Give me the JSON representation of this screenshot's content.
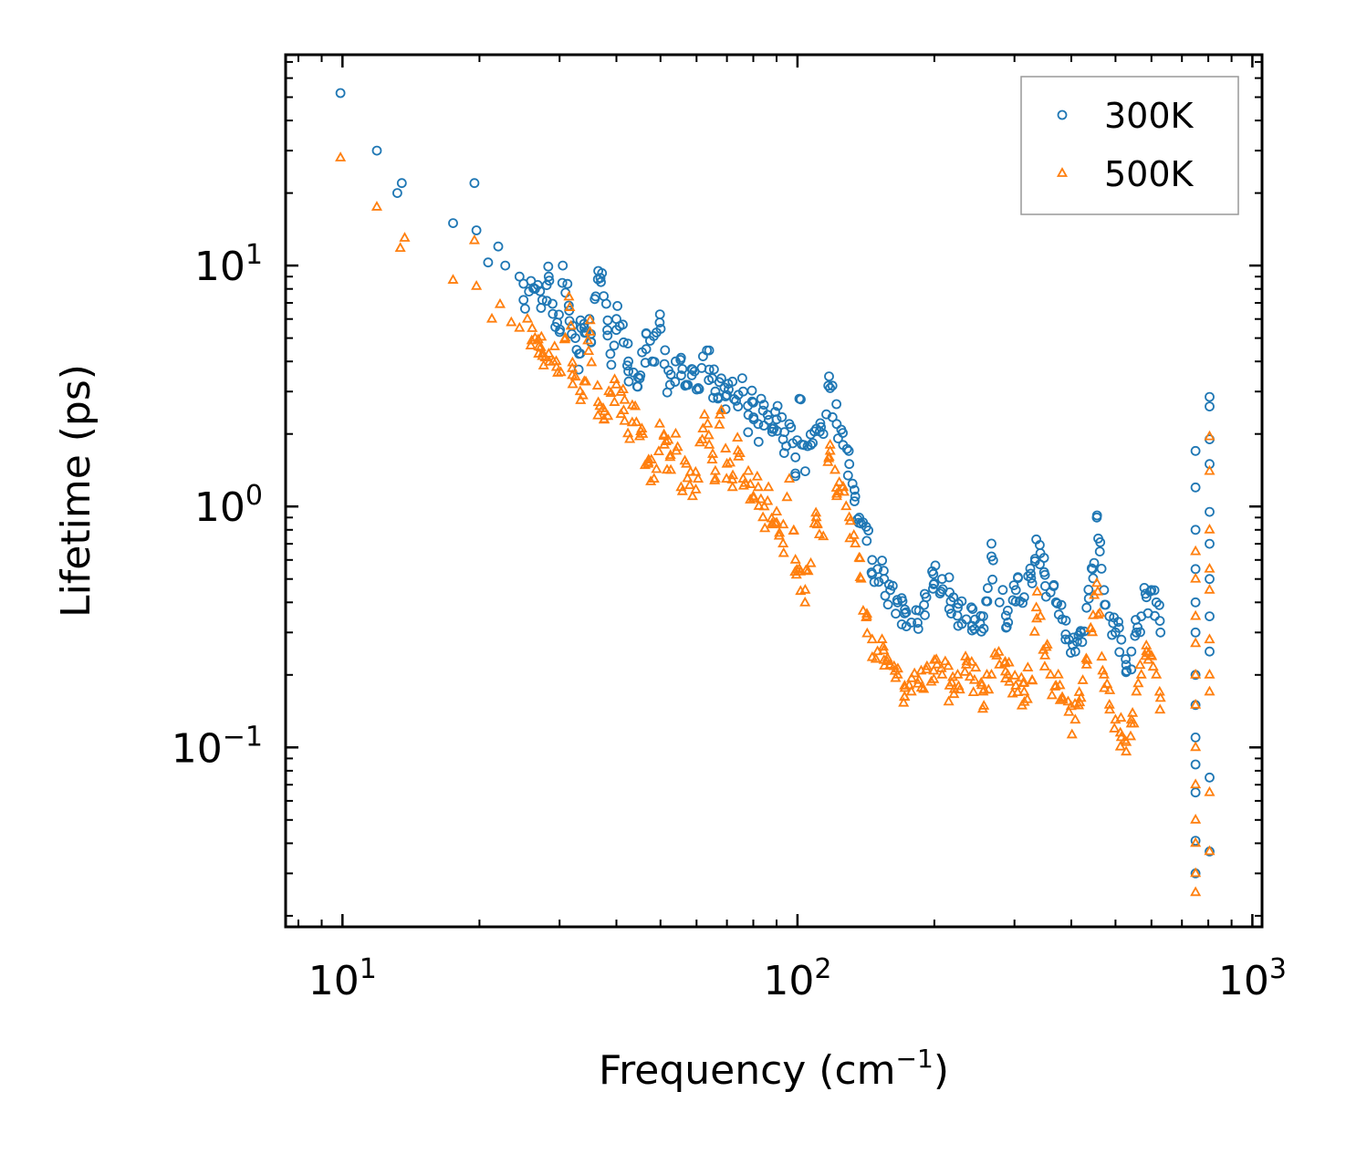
{
  "chart_data": {
    "type": "scatter",
    "xscale": "log",
    "yscale": "log",
    "xlabel": "Frequency (cm",
    "xlabel_sup": "−1",
    "xlabel_end": ")",
    "ylabel": "Lifetime (ps)",
    "xlim": [
      7.5,
      1050
    ],
    "ylim": [
      0.018,
      75
    ],
    "legend_position": "top-right",
    "x_ticks": [
      {
        "value": 10,
        "base": "10",
        "exp": "1"
      },
      {
        "value": 100,
        "base": "10",
        "exp": "2"
      },
      {
        "value": 1000,
        "base": "10",
        "exp": "3"
      }
    ],
    "y_ticks": [
      {
        "value": 0.1,
        "base": "10",
        "exp": "−1"
      },
      {
        "value": 1,
        "base": "10",
        "exp": "0"
      },
      {
        "value": 10,
        "base": "10",
        "exp": "1"
      }
    ],
    "series": [
      {
        "name": "300K",
        "marker": "circle",
        "color": "#1f77b4",
        "points": [
          [
            9.9,
            52
          ],
          [
            11.9,
            30
          ],
          [
            13.2,
            20
          ],
          [
            13.5,
            22
          ],
          [
            17.5,
            15
          ],
          [
            19.5,
            22
          ],
          [
            19.7,
            14
          ],
          [
            20.9,
            10.3
          ],
          [
            22,
            12
          ],
          [
            22.8,
            10
          ],
          [
            24.5,
            9
          ],
          [
            25,
            7.2
          ],
          [
            25.7,
            7.8
          ],
          [
            26.5,
            8
          ],
          [
            27.5,
            7.2
          ],
          [
            28.4,
            9
          ],
          [
            29,
            6.3
          ],
          [
            30,
            5.3
          ],
          [
            30.5,
            10
          ],
          [
            31.5,
            6.5
          ],
          [
            32.5,
            5
          ],
          [
            33.1,
            4.3
          ],
          [
            33.5,
            5.5
          ],
          [
            34.9,
            6
          ],
          [
            35.2,
            4.8
          ],
          [
            36.5,
            9.5
          ],
          [
            37.2,
            9.3
          ],
          [
            38.2,
            5.4
          ],
          [
            38.8,
            4.3
          ],
          [
            40,
            6
          ],
          [
            41.5,
            4.8
          ],
          [
            42.5,
            4
          ],
          [
            43.6,
            3.6
          ],
          [
            45,
            3.4
          ],
          [
            46.5,
            4.5
          ],
          [
            48,
            4
          ],
          [
            49.8,
            5.8
          ],
          [
            51,
            3.9
          ],
          [
            52.5,
            3.2
          ],
          [
            54,
            4
          ],
          [
            55.5,
            3.5
          ],
          [
            57,
            3.2
          ],
          [
            58.8,
            3.7
          ],
          [
            60.5,
            3.1
          ],
          [
            62,
            4.2
          ],
          [
            64,
            3.7
          ],
          [
            66,
            3
          ],
          [
            68,
            3.4
          ],
          [
            70,
            2.9
          ],
          [
            72,
            3.3
          ],
          [
            74,
            2.6
          ],
          [
            76,
            3
          ],
          [
            78,
            2.4
          ],
          [
            80,
            2.7
          ],
          [
            82,
            2.2
          ],
          [
            84,
            2.5
          ],
          [
            86,
            2.4
          ],
          [
            88,
            2.1
          ],
          [
            90,
            2.3
          ],
          [
            93,
            1.9
          ],
          [
            96,
            2.2
          ],
          [
            99,
            1.6
          ],
          [
            101,
            2.8
          ],
          [
            104,
            1.4
          ],
          [
            107,
            1.8
          ],
          [
            110,
            2.1
          ],
          [
            114,
            2
          ],
          [
            118,
            3.1
          ],
          [
            122,
            2.2
          ],
          [
            126,
            1.8
          ],
          [
            130,
            1.5
          ],
          [
            134,
            1.1
          ],
          [
            138,
            0.85
          ],
          [
            142,
            0.72
          ],
          [
            146,
            0.6
          ],
          [
            150,
            0.55
          ],
          [
            155,
            0.5
          ],
          [
            160,
            0.45
          ],
          [
            166,
            0.4
          ],
          [
            172,
            0.36
          ],
          [
            178,
            0.33
          ],
          [
            185,
            0.37
          ],
          [
            192,
            0.42
          ],
          [
            200,
            0.48
          ],
          [
            208,
            0.5
          ],
          [
            216,
            0.44
          ],
          [
            225,
            0.38
          ],
          [
            235,
            0.34
          ],
          [
            245,
            0.31
          ],
          [
            256,
            0.35
          ],
          [
            267,
            0.62
          ],
          [
            278,
            0.4
          ],
          [
            290,
            0.37
          ],
          [
            302,
            0.45
          ],
          [
            315,
            0.42
          ],
          [
            328,
            0.48
          ],
          [
            335,
            0.73
          ],
          [
            342,
            0.64
          ],
          [
            350,
            0.52
          ],
          [
            360,
            0.44
          ],
          [
            370,
            0.4
          ],
          [
            382,
            0.34
          ],
          [
            395,
            0.28
          ],
          [
            408,
            0.25
          ],
          [
            420,
            0.3
          ],
          [
            432,
            0.38
          ],
          [
            445,
            0.55
          ],
          [
            455,
            0.9
          ],
          [
            462,
            0.65
          ],
          [
            472,
            0.45
          ],
          [
            485,
            0.35
          ],
          [
            500,
            0.3
          ],
          [
            515,
            0.28
          ],
          [
            528,
            0.22
          ],
          [
            542,
            0.25
          ],
          [
            556,
            0.3
          ],
          [
            570,
            0.35
          ],
          [
            585,
            0.42
          ],
          [
            600,
            0.45
          ],
          [
            615,
            0.4
          ],
          [
            628,
            0.3
          ],
          [
            750,
            1.7
          ],
          [
            750,
            1.2
          ],
          [
            750,
            0.8
          ],
          [
            750,
            0.55
          ],
          [
            750,
            0.4
          ],
          [
            750,
            0.3
          ],
          [
            750,
            0.2
          ],
          [
            750,
            0.15
          ],
          [
            750,
            0.11
          ],
          [
            750,
            0.085
          ],
          [
            750,
            0.065
          ],
          [
            750,
            0.041
          ],
          [
            750,
            0.03
          ],
          [
            805,
            2.85
          ],
          [
            805,
            2.6
          ],
          [
            805,
            1.9
          ],
          [
            805,
            1.5
          ],
          [
            805,
            0.95
          ],
          [
            805,
            0.7
          ],
          [
            805,
            0.5
          ],
          [
            805,
            0.35
          ],
          [
            805,
            0.25
          ],
          [
            805,
            0.075
          ],
          [
            805,
            0.037
          ]
        ]
      },
      {
        "name": "500K",
        "marker": "triangle",
        "color": "#ff7f0e",
        "points": [
          [
            9.9,
            28
          ],
          [
            11.9,
            17.5
          ],
          [
            13.4,
            11.8
          ],
          [
            13.7,
            13
          ],
          [
            17.5,
            8.7
          ],
          [
            19.5,
            12.7
          ],
          [
            19.7,
            8.2
          ],
          [
            21.3,
            6
          ],
          [
            22.2,
            6.9
          ],
          [
            23.5,
            5.8
          ],
          [
            24.5,
            5.5
          ],
          [
            25.5,
            6
          ],
          [
            26.5,
            5
          ],
          [
            27,
            4.6
          ],
          [
            27.5,
            4.2
          ],
          [
            28.4,
            4.3
          ],
          [
            29.5,
            4
          ],
          [
            30.2,
            3.6
          ],
          [
            31.6,
            6.7
          ],
          [
            32,
            3.5
          ],
          [
            33.3,
            3
          ],
          [
            34,
            3.3
          ],
          [
            35,
            5.3
          ],
          [
            36.5,
            2.7
          ],
          [
            37.6,
            2.3
          ],
          [
            38.5,
            3
          ],
          [
            40,
            3.2
          ],
          [
            41.5,
            2.5
          ],
          [
            42.8,
            1.9
          ],
          [
            44,
            2.6
          ],
          [
            45.5,
            2.1
          ],
          [
            47,
            1.5
          ],
          [
            48.4,
            1.3
          ],
          [
            49.8,
            2.2
          ],
          [
            51,
            1.8
          ],
          [
            52.5,
            1.6
          ],
          [
            54,
            2
          ],
          [
            55.5,
            1.2
          ],
          [
            57,
            1.5
          ],
          [
            58.8,
            1.1
          ],
          [
            60.5,
            1.3
          ],
          [
            62,
            2.1
          ],
          [
            64,
            1.8
          ],
          [
            66,
            1.4
          ],
          [
            68,
            2.5
          ],
          [
            70,
            1.5
          ],
          [
            72,
            1.2
          ],
          [
            74,
            1.7
          ],
          [
            76,
            1.3
          ],
          [
            78,
            1.4
          ],
          [
            80,
            1.1
          ],
          [
            82,
            1.2
          ],
          [
            84,
            0.9
          ],
          [
            86,
            1.05
          ],
          [
            88,
            0.85
          ],
          [
            90,
            0.95
          ],
          [
            93,
            0.7
          ],
          [
            96,
            1.3
          ],
          [
            99,
            0.6
          ],
          [
            101,
            0.55
          ],
          [
            104,
            0.45
          ],
          [
            107,
            0.58
          ],
          [
            110,
            0.9
          ],
          [
            114,
            0.75
          ],
          [
            118,
            1.8
          ],
          [
            122,
            1.1
          ],
          [
            126,
            1.2
          ],
          [
            130,
            0.9
          ],
          [
            134,
            0.7
          ],
          [
            138,
            0.5
          ],
          [
            142,
            0.35
          ],
          [
            146,
            0.28
          ],
          [
            150,
            0.25
          ],
          [
            155,
            0.23
          ],
          [
            160,
            0.22
          ],
          [
            166,
            0.2
          ],
          [
            172,
            0.18
          ],
          [
            178,
            0.17
          ],
          [
            185,
            0.19
          ],
          [
            192,
            0.21
          ],
          [
            200,
            0.23
          ],
          [
            208,
            0.2
          ],
          [
            216,
            0.18
          ],
          [
            225,
            0.2
          ],
          [
            235,
            0.22
          ],
          [
            245,
            0.19
          ],
          [
            256,
            0.17
          ],
          [
            267,
            0.2
          ],
          [
            278,
            0.22
          ],
          [
            290,
            0.2
          ],
          [
            302,
            0.18
          ],
          [
            315,
            0.17
          ],
          [
            328,
            0.19
          ],
          [
            335,
            0.38
          ],
          [
            342,
            0.35
          ],
          [
            350,
            0.24
          ],
          [
            360,
            0.2
          ],
          [
            370,
            0.18
          ],
          [
            382,
            0.16
          ],
          [
            395,
            0.14
          ],
          [
            408,
            0.13
          ],
          [
            420,
            0.16
          ],
          [
            432,
            0.22
          ],
          [
            445,
            0.3
          ],
          [
            455,
            0.48
          ],
          [
            462,
            0.36
          ],
          [
            472,
            0.2
          ],
          [
            485,
            0.15
          ],
          [
            500,
            0.13
          ],
          [
            515,
            0.11
          ],
          [
            528,
            0.105
          ],
          [
            542,
            0.13
          ],
          [
            556,
            0.17
          ],
          [
            570,
            0.2
          ],
          [
            585,
            0.25
          ],
          [
            600,
            0.24
          ],
          [
            615,
            0.2
          ],
          [
            628,
            0.16
          ],
          [
            750,
            0.65
          ],
          [
            750,
            0.5
          ],
          [
            750,
            0.35
          ],
          [
            750,
            0.27
          ],
          [
            750,
            0.2
          ],
          [
            750,
            0.15
          ],
          [
            750,
            0.1
          ],
          [
            750,
            0.07
          ],
          [
            750,
            0.05
          ],
          [
            750,
            0.04
          ],
          [
            750,
            0.03
          ],
          [
            750,
            0.025
          ],
          [
            805,
            1.95
          ],
          [
            805,
            1.4
          ],
          [
            805,
            0.8
          ],
          [
            805,
            0.55
          ],
          [
            805,
            0.45
          ],
          [
            805,
            0.28
          ],
          [
            805,
            0.2
          ],
          [
            805,
            0.17
          ],
          [
            805,
            0.065
          ],
          [
            805,
            0.037
          ]
        ]
      }
    ]
  }
}
